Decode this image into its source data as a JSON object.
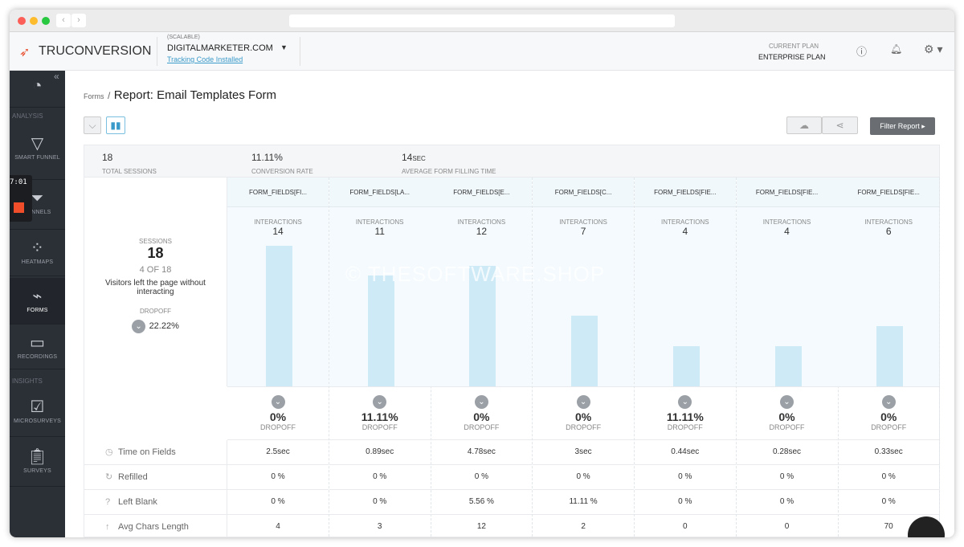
{
  "header": {
    "brand": "TRUCONVERSION",
    "site_tag": "(SCALABLE)",
    "site": "DIGITALMARKETER.COM",
    "tracking": "Tracking Code Installed",
    "plan_label": "CURRENT PLAN",
    "plan": "ENTERPRISE PLAN"
  },
  "sidebar": {
    "sections": [
      "ANALYSIS",
      "INSIGHTS"
    ],
    "items": [
      {
        "label": "SMART FUNNEL"
      },
      {
        "label": "FUNNELS"
      },
      {
        "label": "HEATMAPS"
      },
      {
        "label": "FORMS"
      },
      {
        "label": "RECORDINGS"
      },
      {
        "label": "MICROSURVEYS"
      },
      {
        "label": "SURVEYS"
      }
    ],
    "timer": "7:01"
  },
  "breadcrumb": {
    "parent": "Forms",
    "sep": "/",
    "title": "Report: Email Templates Form"
  },
  "toolbar": {
    "filter": "Filter Report"
  },
  "stats": [
    {
      "value": "18",
      "label": "TOTAL SESSIONS"
    },
    {
      "value": "11.11%",
      "label": "CONVERSION RATE"
    },
    {
      "value": "14",
      "unit": "SEC",
      "label": "AVERAGE FORM FILLING TIME"
    }
  ],
  "summary": {
    "sessions_label": "SESSIONS",
    "sessions": "18",
    "ratio": "4 OF 18",
    "note": "Visitors left the page without interacting",
    "dropoff_label": "DROPOFF",
    "dropoff": "22.22%"
  },
  "interactions_label": "INTERACTIONS",
  "dropoff_label": "DROPOFF",
  "row_labels": [
    "Time on Fields",
    "Refilled",
    "Left Blank",
    "Avg Chars Length"
  ],
  "columns": [
    {
      "name": "FORM_FIELDS[FI...",
      "interactions": 14,
      "dropoff": "0%",
      "time": "2.5sec",
      "refilled": "0 %",
      "blank": "0 %",
      "chars": "4"
    },
    {
      "name": "FORM_FIELDS[LA...",
      "interactions": 11,
      "dropoff": "11.11%",
      "time": "0.89sec",
      "refilled": "0 %",
      "blank": "0 %",
      "chars": "3"
    },
    {
      "name": "FORM_FIELDS[E...",
      "interactions": 12,
      "dropoff": "0%",
      "time": "4.78sec",
      "refilled": "0 %",
      "blank": "5.56 %",
      "chars": "12"
    },
    {
      "name": "FORM_FIELDS[C...",
      "interactions": 7,
      "dropoff": "0%",
      "time": "3sec",
      "refilled": "0 %",
      "blank": "11.11 %",
      "chars": "2"
    },
    {
      "name": "FORM_FIELDS[FIE...",
      "interactions": 4,
      "dropoff": "11.11%",
      "time": "0.44sec",
      "refilled": "0 %",
      "blank": "0 %",
      "chars": "0"
    },
    {
      "name": "FORM_FIELDS[FIE...",
      "interactions": 4,
      "dropoff": "0%",
      "time": "0.28sec",
      "refilled": "0 %",
      "blank": "0 %",
      "chars": "0"
    },
    {
      "name": "FORM_FIELDS[FIE...",
      "interactions": 6,
      "dropoff": "0%",
      "time": "0.33sec",
      "refilled": "0 %",
      "blank": "0 %",
      "chars": "70"
    }
  ],
  "watermark": "© THESOFTWARE.SHOP"
}
